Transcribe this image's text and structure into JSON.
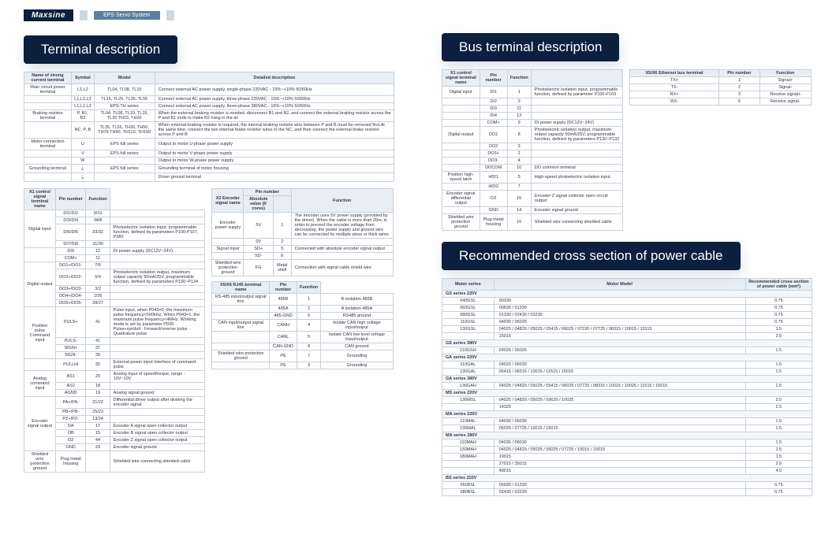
{
  "header": {
    "brand": "Maxsine",
    "product": "EPS Servo System"
  },
  "section_titles": {
    "terminal": "Terminal description",
    "bus": "Bus terminal description",
    "rec": "Recommended cross section of power cable"
  },
  "colors": {
    "navy": "#0d1f3f",
    "header_bg": "#e8eef4",
    "border": "#c8d0d8",
    "text": "#334455",
    "tag_bg": "#5a7fa0"
  },
  "table1": {
    "headers": [
      "Name of strong current terminal",
      "Symbol",
      "Model",
      "Detailed description"
    ],
    "rows": [
      [
        "Main circuit power terminal",
        "L1,L2",
        "TL04, TL08, TL10",
        "Connect external AC power supply, single-phase 220VAC - 15%~+10% 50/60Hz"
      ],
      [
        "",
        "L1,L2,L3",
        "TL15, TL25, TL35, TL55",
        "Connect external AC power supply, three-phase 220VAC - 15%~+10% 50/60Hz"
      ],
      [
        "",
        "L1,L2,L3",
        "EPS-TH series",
        "Connect external AC power supply, three-phase 380VAC - 15%~+10% 50/60Hz"
      ],
      [
        "Braking resistor terminal",
        "P, B1, B2",
        "TL04, TL08, TL10, TL15, TL25 TH15, TH20",
        "When the external braking resistor is needed, disconnect B1 and B2, and connect the external braking resistor across the P and B1 ends to make B2 hang in the air"
      ],
      [
        "",
        "NC, P, B",
        "TL35, TL55, TH30, TH50, TH75 TH90, TH110, TH150",
        "When external braking resistor is required, the internal braking resistor wire between P and B must be removed first.At the same time, connect the two internal brake resistor wires to the NC, and then connect the external brake resistor across P and B"
      ],
      [
        "Motor connection terminal",
        "U",
        "EPS full series",
        "Output to motor U-phase power supply"
      ],
      [
        "",
        "V",
        "EPS full series",
        "Output to motor V-phase power supply"
      ],
      [
        "",
        "W",
        "",
        "Output to motor W-phase power supply"
      ],
      [
        "Grounding terminal",
        "⏚",
        "EPS full series",
        "Grounding terminal of motor housing"
      ],
      [
        "",
        "⏚",
        "",
        "Driver ground terminal"
      ]
    ]
  },
  "table2": {
    "headers": [
      "X1 control signal terminal name",
      "Pin number",
      "Function"
    ],
    "groups": [
      {
        "name": "Digital input",
        "rows": [
          [
            "DI1/DI2",
            "9/10",
            ""
          ],
          [
            "DI3/DI4",
            "34/8",
            ""
          ],
          [
            "DI5/DI6",
            "33/32",
            "Photoelectric isolation input, programmable function, defined by parameters P100-P107, P380"
          ],
          [
            "DI7/DI8",
            "31/30",
            ""
          ]
        ]
      },
      {
        "name": "",
        "rows": [
          [
            "DI9",
            "12",
            "DI power supply (DC12V~24V)"
          ],
          [
            "COM+",
            "11",
            ""
          ]
        ]
      },
      {
        "name": "Digital output",
        "rows": [
          [
            "DO1+/DO1-",
            "7/6",
            ""
          ],
          [
            "DO2+/DO2-",
            "5/4",
            "Photoelectric isolation output, maximum output capacity 50mA/25V, programmable function, defined by parameters P130~P134"
          ],
          [
            "DO3+/DO3-",
            "3/2",
            ""
          ],
          [
            "DO4+/DO4-",
            "1/26",
            ""
          ],
          [
            "DO5+/DO5-",
            "28/27",
            ""
          ]
        ]
      },
      {
        "name": "Position pulse Command input",
        "rows": [
          [
            "PULS+",
            "41",
            "Pulse input, when P043=0, the maximum pulse frequency<500kHz; When P043=1, the maximum pulse frequency<4MHz. Working mode is set by parameter P035: · Pulse+symbol · Forward/reverse pulse · Quadrature pulse"
          ],
          [
            "PULS-",
            "41",
            ""
          ],
          [
            "SIGN+",
            "37",
            ""
          ],
          [
            "SIGN-",
            "39",
            ""
          ]
        ]
      },
      {
        "name": "",
        "rows": [
          [
            "PULLHI",
            "35",
            "External power input interface of command pulse"
          ]
        ]
      },
      {
        "name": "Analog command input",
        "rows": [
          [
            "AS1",
            "20",
            "Analog input of speed/torque, range - 10V~10V"
          ],
          [
            "AS2",
            "18",
            ""
          ],
          [
            "AGND",
            "19",
            "Analog signal ground"
          ]
        ]
      },
      {
        "name": "Encoder signal output",
        "rows": [
          [
            "PA+/PA-",
            "21/22",
            "Differential driver output after dividing the encoder signal"
          ],
          [
            "PB+/PB-",
            "25/23",
            ""
          ],
          [
            "PZ+/PZ-",
            "13/24",
            ""
          ],
          [
            "DA",
            "17",
            "Encoder A signal open collector output"
          ],
          [
            "OB",
            "15",
            "Encoder B signal open collector output"
          ],
          [
            "OZ",
            "44",
            "Encoder Z signal open collector output"
          ],
          [
            "GND",
            "29",
            "Encoder signal ground"
          ]
        ]
      },
      {
        "name": "Shielded wire protection ground",
        "rows": [
          [
            "Plug metal housing",
            "",
            "Shielded wire connecting shielded cable"
          ]
        ]
      }
    ]
  },
  "table3": {
    "headers": [
      "X2 Encoder signal name",
      "Pin number",
      "Absolute value (K cores)",
      "Function"
    ],
    "rows": [
      [
        "Encoder power supply",
        "5V",
        "1",
        "The encoder uses 5V power supply (provided by the driver). When the cable is more than 20m, in order to prevent the encoder voltage from decreasing, the power supply and ground wire can be connected by multiple wires or thick wires"
      ],
      [
        "",
        "0V",
        "2",
        ""
      ],
      [
        "Signal input",
        "SD+",
        "5",
        "Connected with absolute encoder signal output"
      ],
      [
        "",
        "SD-",
        "6",
        ""
      ],
      [
        "Shielded wire protection ground",
        "FG",
        "Metal shell",
        "Connection with signal cable shield wire"
      ]
    ]
  },
  "table4": {
    "headers": [
      "X5/X6 RJ45 terminal name",
      "Pin number",
      "Function"
    ],
    "rows": [
      [
        "RS-485 input/output signal line",
        "485B",
        "1",
        "B isolation 485B"
      ],
      [
        "",
        "485A",
        "2",
        "A isolation 485A"
      ],
      [
        "",
        "485-GND",
        "6",
        "RS485 ground"
      ],
      [
        "CAN input/output signal line",
        "CANH",
        "4",
        "Isolate CAN high voltage input/output"
      ],
      [
        "",
        "CANL",
        "5",
        "Isolate CAN low level voltage input/output"
      ],
      [
        "",
        "CAN-GND",
        "8",
        "CAN ground"
      ],
      [
        "Shielded wire protection ground",
        "PE",
        "7",
        "Grounding"
      ],
      [
        "",
        "PE",
        "3",
        "Grounding"
      ]
    ]
  },
  "bus_left": {
    "headers": [
      "X1 control signal terminal name",
      "Pin number",
      "Function"
    ],
    "rows": [
      [
        "Digital input",
        "DI1",
        "1",
        "Photoelectric isolation input, programmable function, defined by parameter P100-P103"
      ],
      [
        "",
        "DI2",
        "3",
        ""
      ],
      [
        "",
        "DI3",
        "11",
        ""
      ],
      [
        "",
        "DI4",
        "13",
        ""
      ],
      [
        "",
        "COM+",
        "9",
        "DI power supply (DC12V~24V)"
      ],
      [
        "Digital output",
        "DO1",
        "8",
        "Photoelectric isolation output, maximum output capacity 50mA/25V, programmable function, defined by parameters P130~P132"
      ],
      [
        "",
        "DO2",
        "3",
        ""
      ],
      [
        "",
        "DO3+",
        "2",
        ""
      ],
      [
        "",
        "DO3-",
        "4",
        ""
      ],
      [
        "",
        "DOCOM",
        "10",
        "DO common terminal"
      ],
      [
        "Position high-speed latch",
        "HDI1",
        "5",
        "High-speed photoelectric isolation input"
      ],
      [
        "",
        "HDI2",
        "7",
        ""
      ],
      [
        "Encoder signal differential output",
        "OZ",
        "15",
        "Encoder Z signal collector open circuit output"
      ],
      [
        "",
        "GND",
        "14",
        "Encoder signal ground"
      ],
      [
        "Shielded wire protection ground",
        "Plug metal housing",
        "16",
        "Shielded wire connecting shielded cable"
      ]
    ]
  },
  "bus_right": {
    "headers": [
      "X5/X6 Ethernet bus terminal",
      "Pin number",
      "Function"
    ],
    "rows": [
      [
        "TX+",
        "1",
        "Signal+"
      ],
      [
        "TX-",
        "2",
        "Signal-"
      ],
      [
        "RX+",
        "3",
        "Receive signal+"
      ],
      [
        "RX-",
        "6",
        "Receive signal-"
      ]
    ]
  },
  "rec": {
    "headers": [
      "Motor series",
      "Motor Model",
      "Recommended cross section of power cable (mm²)"
    ],
    "groups": [
      {
        "h": "GS series 220V",
        "rows": [
          [
            "040GSL",
            "00330",
            "0.75"
          ],
          [
            "060GSL",
            "00630 / 01330",
            "0.75"
          ],
          [
            "080GSL",
            "01330 / 02430 / 03230",
            "0.75"
          ],
          [
            "110GSL",
            "04030 / 06025",
            "0.75"
          ],
          [
            "130GSL",
            "04025 / 04820 / 05025 / 05415 / 06025 / 07220 / 07725 / 08315 / 10015 / 11515",
            "1.5"
          ],
          [
            "",
            "15015",
            "2.5"
          ]
        ]
      },
      {
        "h": "GS series 380V",
        "rows": [
          [
            "110GSH",
            "04025 / 06025",
            "1.5"
          ]
        ]
      },
      {
        "h": "GA series 220V",
        "rows": [
          [
            "110GAL",
            "04020 / 06030",
            "1.5"
          ],
          [
            "130GAL",
            "05415 / 08315 / 10015 / 11515 / 15015",
            "1.5"
          ]
        ]
      },
      {
        "h": "GA series 380V",
        "rows": [
          [
            "130GAH",
            "04025 / 04820 / 05025 / 05415 / 06025 / 07725 / 08315 / 10015 / 10025 / 11515 / 15015",
            "1.5"
          ]
        ]
      },
      {
        "h": "MS series 220V",
        "rows": [
          [
            "130MSL",
            "04025 / 04820 / 05025 / 09620 / 10025",
            "2.5"
          ],
          [
            "",
            "14320",
            "2.5"
          ]
        ]
      },
      {
        "h": "MA series 220V",
        "rows": [
          [
            "110MAL",
            "04030 / 06030",
            "1.5"
          ],
          [
            "130MAL",
            "06025 / 07725 / 10015 / 15015",
            "1.5"
          ]
        ]
      },
      {
        "h": "MA series 380V",
        "rows": [
          [
            "110MAH",
            "04030 / 06030",
            "1.5"
          ],
          [
            "130MAH",
            "04025 / 04820 / 05025 / 06025 / 07725 / 10015 / 15015",
            "1.5"
          ],
          [
            "180MAH",
            "19015",
            "1.5"
          ],
          [
            "",
            "27015 / 35015",
            "2.5"
          ],
          [
            "",
            "48015",
            "4.0"
          ]
        ]
      },
      {
        "h": "BS series 220V",
        "rows": [
          [
            "060BSL",
            "06030 / 01330",
            "0.75"
          ],
          [
            "080BSL",
            "02430 / 03230",
            "0.75"
          ]
        ]
      }
    ]
  }
}
